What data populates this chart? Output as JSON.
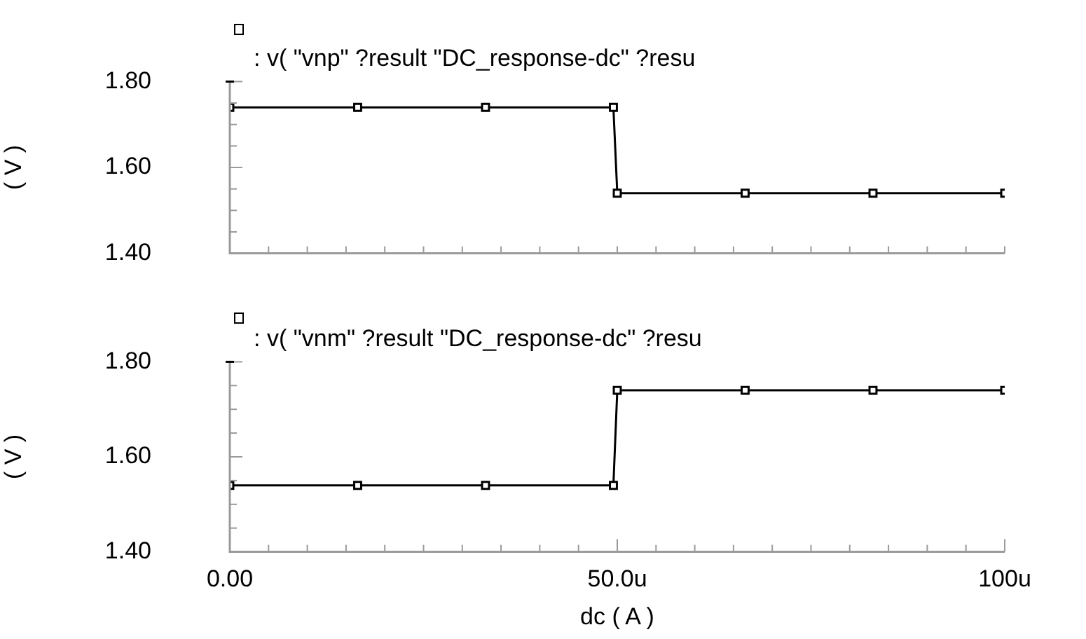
{
  "chart_data": [
    {
      "type": "line",
      "title": ": v( \"vnp\" ?result \"DC_response-dc\" ?resu",
      "ylabel": "( V )",
      "marker": "square",
      "tick_labels": "y",
      "x": [
        0,
        16.5,
        33,
        49.5,
        50,
        66.5,
        83,
        100
      ],
      "series": [
        {
          "color": "#000000",
          "values": [
            1.74,
            1.74,
            1.74,
            1.74,
            1.54,
            1.54,
            1.54,
            1.54
          ]
        }
      ],
      "xlim": [
        0,
        100
      ],
      "xticks": [
        {
          "value": 0,
          "label": null
        },
        {
          "value": 5,
          "label": null
        },
        {
          "value": 10,
          "label": null
        },
        {
          "value": 15,
          "label": null
        },
        {
          "value": 20,
          "label": null
        },
        {
          "value": 25,
          "label": null
        },
        {
          "value": 30,
          "label": null
        },
        {
          "value": 35,
          "label": null
        },
        {
          "value": 40,
          "label": null
        },
        {
          "value": 45,
          "label": null
        },
        {
          "value": 50,
          "label": null
        },
        {
          "value": 55,
          "label": null
        },
        {
          "value": 60,
          "label": null
        },
        {
          "value": 65,
          "label": null
        },
        {
          "value": 70,
          "label": null
        },
        {
          "value": 75,
          "label": null
        },
        {
          "value": 80,
          "label": null
        },
        {
          "value": 85,
          "label": null
        },
        {
          "value": 90,
          "label": null
        },
        {
          "value": 95,
          "label": null
        },
        {
          "value": 100,
          "label": null
        }
      ],
      "ylim": [
        1.4,
        1.8
      ],
      "yticks": [
        {
          "value": 1.4,
          "label": "1.40"
        },
        {
          "value": 1.45,
          "label": null
        },
        {
          "value": 1.5,
          "label": null
        },
        {
          "value": 1.55,
          "label": null
        },
        {
          "value": 1.6,
          "label": "1.60"
        },
        {
          "value": 1.65,
          "label": null
        },
        {
          "value": 1.7,
          "label": null
        },
        {
          "value": 1.75,
          "label": null
        },
        {
          "value": 1.8,
          "label": "1.80"
        }
      ]
    },
    {
      "type": "line",
      "title": ": v( \"vnm\" ?result \"DC_response-dc\" ?resu",
      "ylabel": "( V )",
      "xlabel": "dc ( A )",
      "marker": "square",
      "x": [
        0,
        16.5,
        33,
        49.5,
        50,
        66.5,
        83,
        100
      ],
      "series": [
        {
          "color": "#000000",
          "values": [
            1.54,
            1.54,
            1.54,
            1.54,
            1.74,
            1.74,
            1.74,
            1.74
          ]
        }
      ],
      "xlim": [
        0,
        100
      ],
      "xticks": [
        {
          "value": 0,
          "label": "0.00"
        },
        {
          "value": 5,
          "label": null
        },
        {
          "value": 10,
          "label": null
        },
        {
          "value": 15,
          "label": null
        },
        {
          "value": 20,
          "label": null
        },
        {
          "value": 25,
          "label": null
        },
        {
          "value": 30,
          "label": null
        },
        {
          "value": 35,
          "label": null
        },
        {
          "value": 40,
          "label": null
        },
        {
          "value": 45,
          "label": null
        },
        {
          "value": 50,
          "label": "50.0u"
        },
        {
          "value": 55,
          "label": null
        },
        {
          "value": 60,
          "label": null
        },
        {
          "value": 65,
          "label": null
        },
        {
          "value": 70,
          "label": null
        },
        {
          "value": 75,
          "label": null
        },
        {
          "value": 80,
          "label": null
        },
        {
          "value": 85,
          "label": null
        },
        {
          "value": 90,
          "label": null
        },
        {
          "value": 95,
          "label": null
        },
        {
          "value": 100,
          "label": "100u"
        }
      ],
      "ylim": [
        1.4,
        1.8
      ],
      "yticks": [
        {
          "value": 1.4,
          "label": "1.40"
        },
        {
          "value": 1.45,
          "label": null
        },
        {
          "value": 1.5,
          "label": null
        },
        {
          "value": 1.55,
          "label": null
        },
        {
          "value": 1.6,
          "label": "1.60"
        },
        {
          "value": 1.65,
          "label": null
        },
        {
          "value": 1.7,
          "label": null
        },
        {
          "value": 1.75,
          "label": null
        },
        {
          "value": 1.8,
          "label": "1.80"
        }
      ]
    }
  ]
}
